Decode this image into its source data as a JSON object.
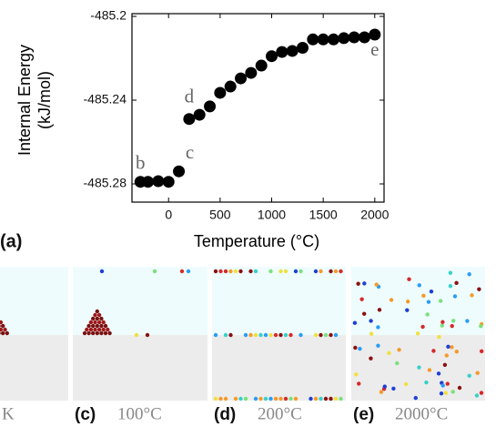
{
  "chart_data": {
    "type": "scatter",
    "ylabel": [
      "Internal Energy",
      "(kJ/mol)"
    ],
    "xlabel": "Temperature (°C)",
    "panel_label": "(a)",
    "x": [
      -273,
      -200,
      -100,
      0,
      100,
      200,
      300,
      400,
      500,
      600,
      700,
      800,
      900,
      1000,
      1100,
      1200,
      1300,
      1400,
      1500,
      1600,
      1700,
      1800,
      1900,
      2000
    ],
    "y": [
      -485.279,
      -485.279,
      -485.2787,
      -485.279,
      -485.274,
      -485.249,
      -485.247,
      -485.243,
      -485.2365,
      -485.2335,
      -485.2296,
      -485.227,
      -485.2235,
      -485.219,
      -485.217,
      -485.2165,
      -485.215,
      -485.211,
      -485.211,
      -485.211,
      -485.2104,
      -485.21,
      -485.21,
      -485.2087
    ],
    "color": "#000000",
    "xlim": [
      -355,
      2090
    ],
    "ylim": [
      -485.2887,
      -485.1987
    ],
    "xticks": [
      0,
      500,
      1000,
      1500,
      2000
    ],
    "yticks": [
      -485.28,
      -485.24,
      -485.2
    ],
    "annotations": [
      {
        "text": "b",
        "x": -273,
        "y": -485.279
      },
      {
        "text": "c",
        "x": 100,
        "y": -485.274
      },
      {
        "text": "d",
        "x": 200,
        "y": -485.249
      },
      {
        "text": "e",
        "x": 2000,
        "y": -485.2087
      }
    ]
  },
  "panels": [
    {
      "caption": "K"
    },
    {
      "label": "(c)",
      "caption": "100°C"
    },
    {
      "label": "(d)",
      "caption": "200°C"
    },
    {
      "label": "(e)",
      "caption": "2000°C"
    }
  ]
}
